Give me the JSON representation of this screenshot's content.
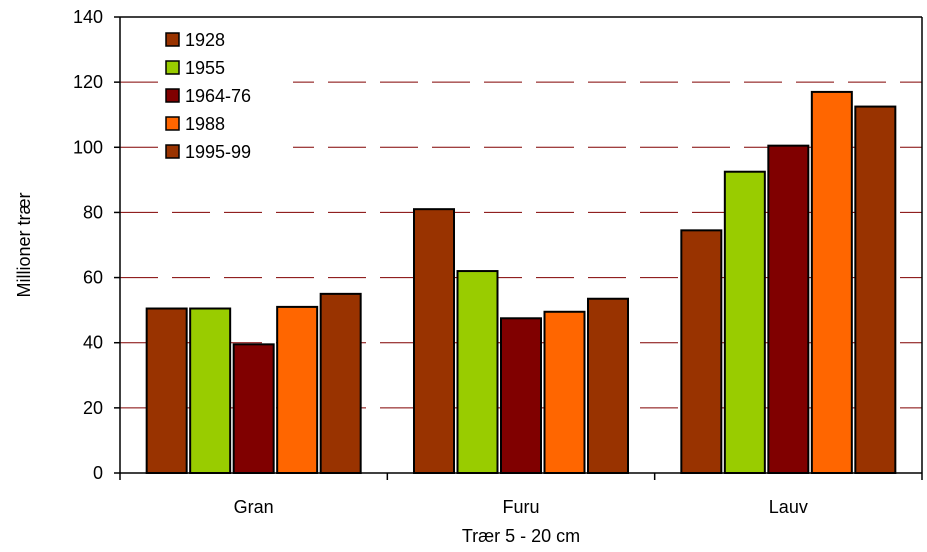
{
  "chart_data": {
    "type": "bar",
    "title": "",
    "xlabel": "Trær 5 - 20 cm",
    "ylabel": "Millioner trær",
    "categories": [
      "Gran",
      "Furu",
      "Lauv"
    ],
    "ylim": [
      0,
      140
    ],
    "yticks": [
      "0",
      "20",
      "40",
      "60",
      "80",
      "100",
      "120",
      "140"
    ],
    "grid": "dashed horizontal",
    "legend_position": "top-left",
    "series": [
      {
        "name": "1928",
        "values": [
          50.5,
          81,
          74.5
        ],
        "color": "#993300"
      },
      {
        "name": "1955",
        "values": [
          50.5,
          62,
          92.5
        ],
        "color": "#99cc00"
      },
      {
        "name": "1964-76",
        "values": [
          39.5,
          47.5,
          100.5
        ],
        "color": "#800000"
      },
      {
        "name": "1988",
        "values": [
          51,
          49.5,
          117
        ],
        "color": "#ff6600"
      },
      {
        "name": "1995-99",
        "values": [
          55,
          53.5,
          112.5
        ],
        "color": "#993300"
      }
    ],
    "gridline_color": "#800000"
  }
}
